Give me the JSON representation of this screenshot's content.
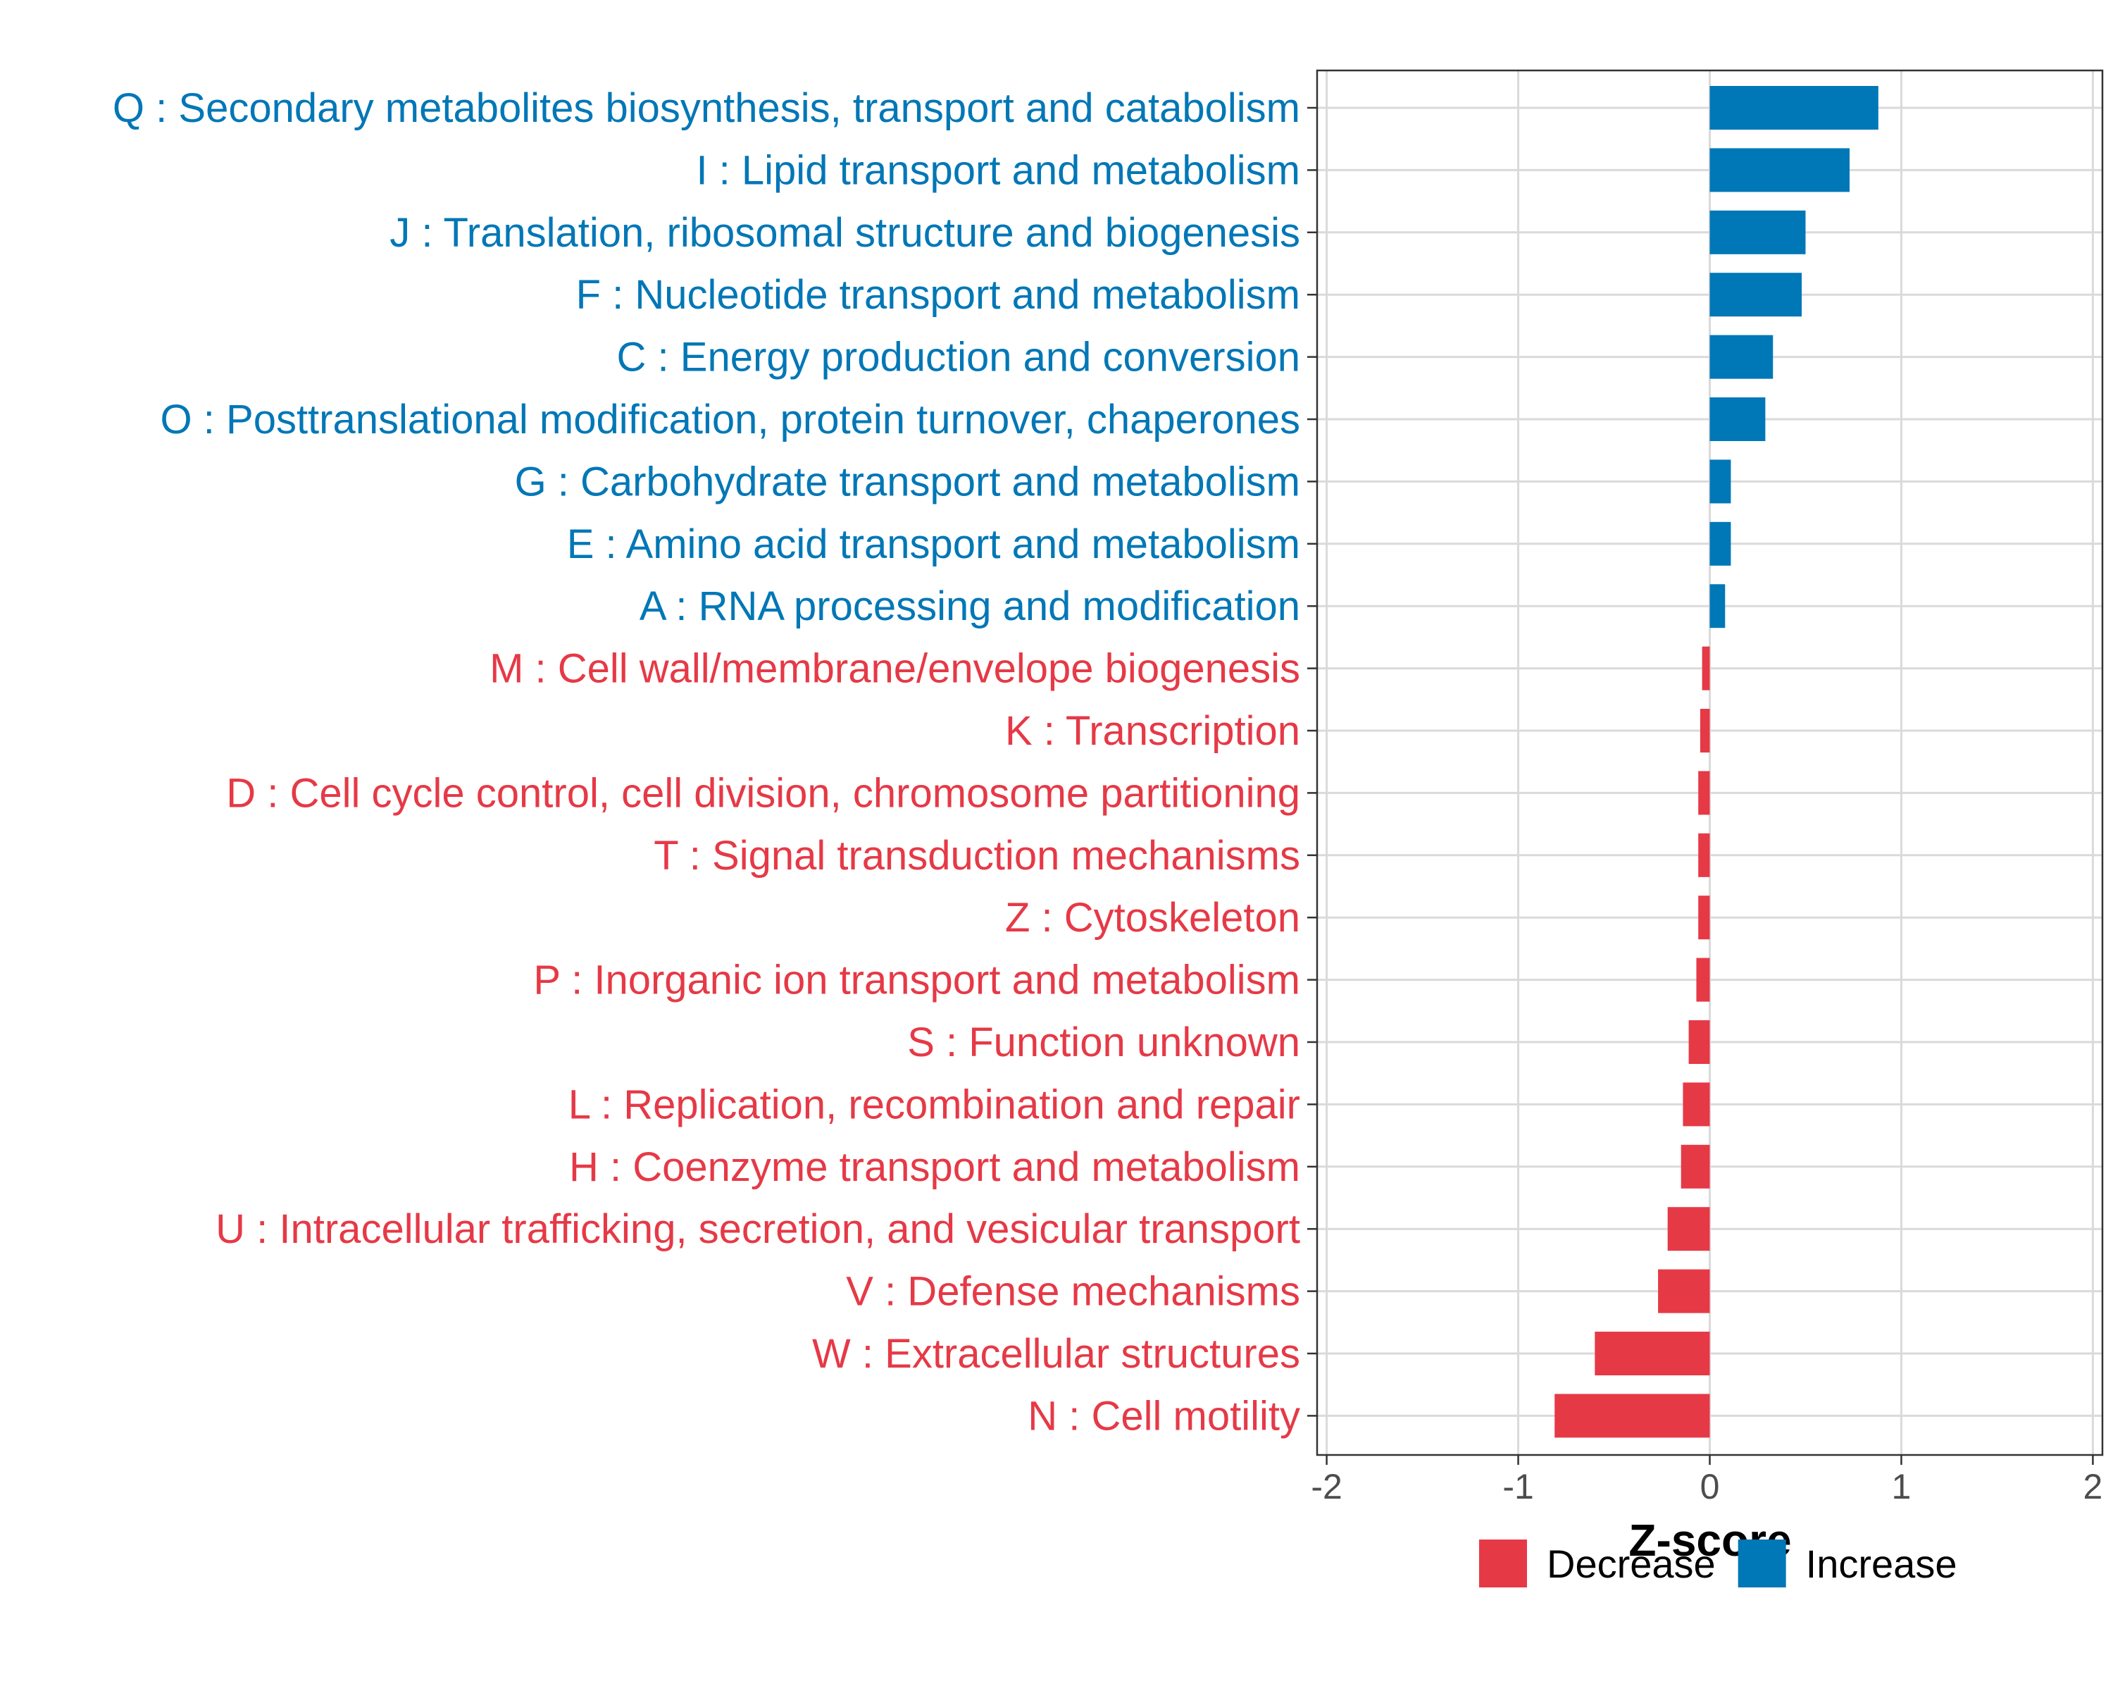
{
  "chart_data": {
    "type": "bar",
    "orientation": "horizontal",
    "title": "",
    "xlabel": "Z-score",
    "ylabel": "",
    "xlim": [
      -2.05,
      2.05
    ],
    "xticks": [
      -2,
      -1,
      0,
      1,
      2
    ],
    "grid": true,
    "legend_position": "bottom-right",
    "colors": {
      "decrease": "#E63946",
      "increase": "#0077B6"
    },
    "legend": [
      {
        "key": "decrease",
        "label": "Decrease"
      },
      {
        "key": "increase",
        "label": "Increase"
      }
    ],
    "categories": [
      "Q : Secondary metabolites biosynthesis, transport and catabolism",
      "I : Lipid transport and metabolism",
      "J : Translation, ribosomal structure and biogenesis",
      "F : Nucleotide transport and metabolism",
      "C : Energy production and conversion",
      "O : Posttranslational modification, protein turnover, chaperones",
      "G : Carbohydrate transport and metabolism",
      "E : Amino acid transport and metabolism",
      "A : RNA processing and modification",
      "M : Cell wall/membrane/envelope biogenesis",
      "K : Transcription",
      "D : Cell cycle control, cell division, chromosome partitioning",
      "T : Signal transduction mechanisms",
      "Z : Cytoskeleton",
      "P : Inorganic ion transport and metabolism",
      "S : Function unknown",
      "L : Replication, recombination and repair",
      "H : Coenzyme transport and metabolism",
      "U : Intracellular trafficking, secretion, and vesicular transport",
      "V : Defense mechanisms",
      "W : Extracellular structures",
      "N : Cell motility"
    ],
    "values": [
      0.88,
      0.73,
      0.5,
      0.48,
      0.33,
      0.29,
      0.11,
      0.11,
      0.08,
      -0.04,
      -0.05,
      -0.06,
      -0.06,
      -0.06,
      -0.07,
      -0.11,
      -0.14,
      -0.15,
      -0.22,
      -0.27,
      -0.6,
      -0.81
    ]
  }
}
